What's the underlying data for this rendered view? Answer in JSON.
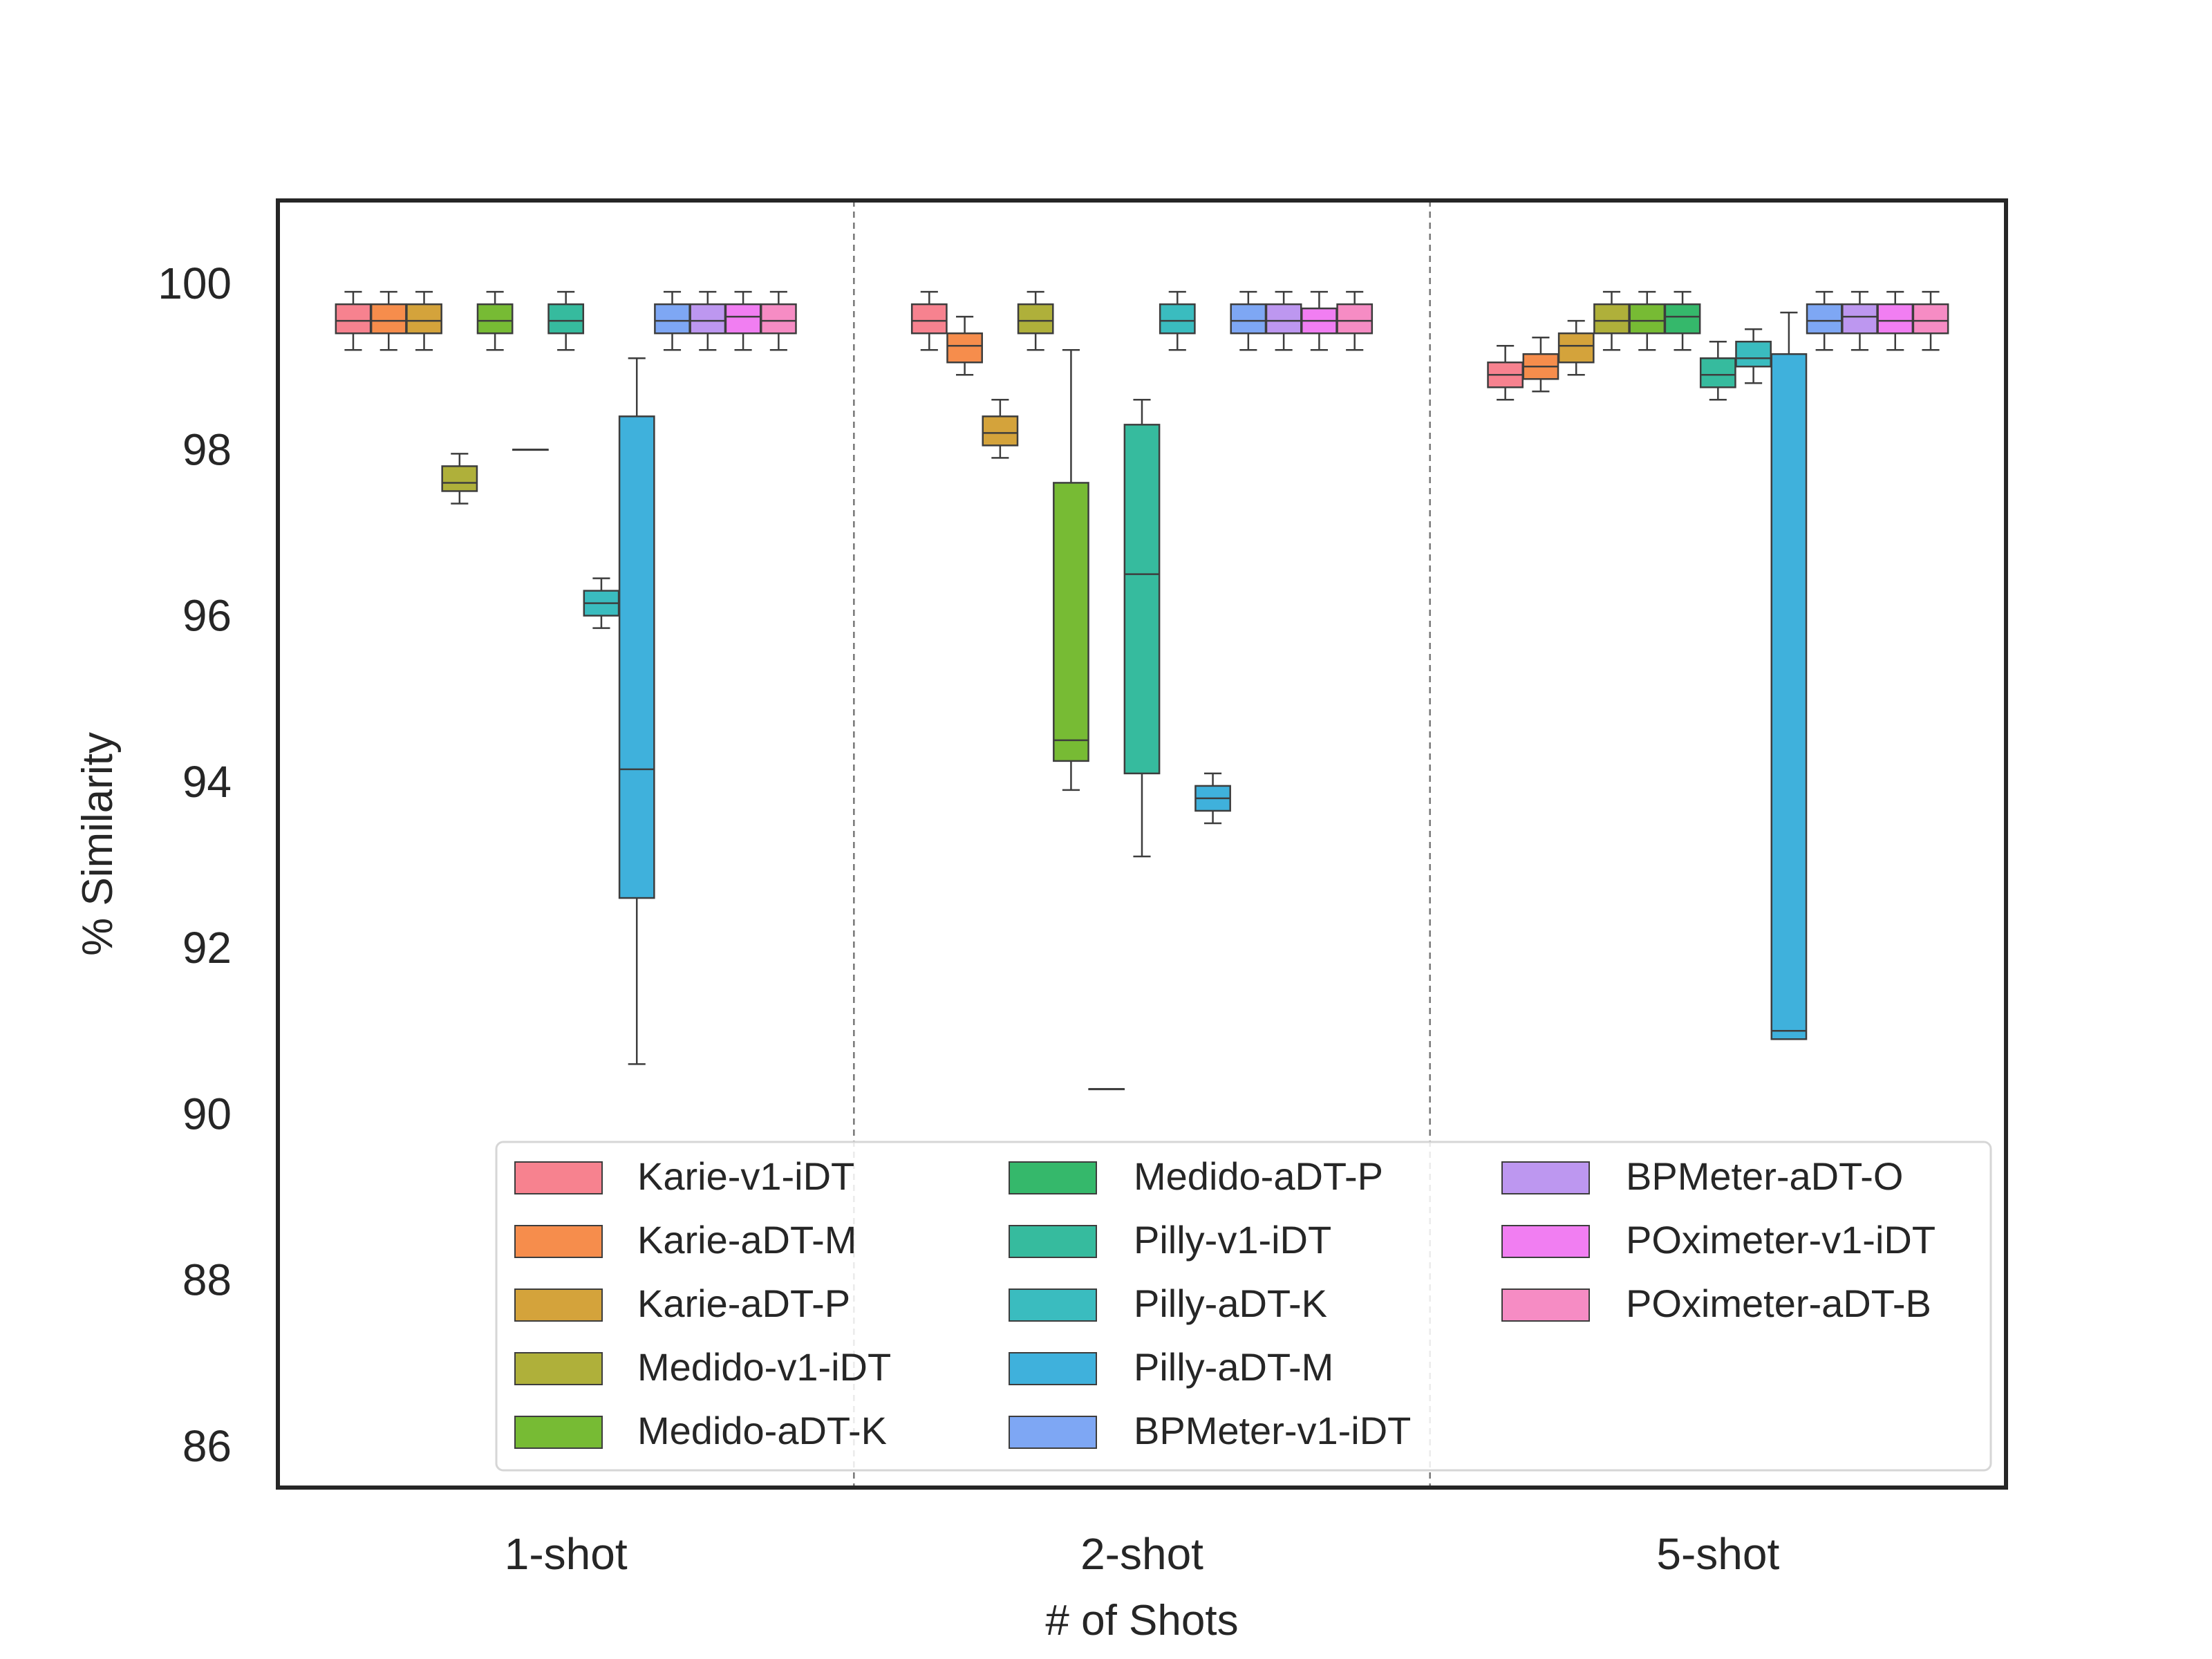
{
  "chart_data": {
    "type": "box",
    "xlabel": "# of Shots",
    "ylabel": "% Similarity",
    "ylim": [
      85.5,
      101
    ],
    "yticks": [
      86,
      88,
      90,
      92,
      94,
      96,
      98,
      100
    ],
    "grid": false,
    "legend_position": "lower-right",
    "legend_columns": 3,
    "categories": [
      "1-shot",
      "2-shot",
      "5-shot"
    ],
    "series": [
      {
        "name": "Karie-v1-iDT",
        "color": "#f7828f",
        "boxes": [
          {
            "min": 99.2,
            "q1": 99.4,
            "median": 99.55,
            "q3": 99.75,
            "max": 99.9
          },
          {
            "min": 99.2,
            "q1": 99.4,
            "median": 99.55,
            "q3": 99.75,
            "max": 99.9
          },
          {
            "min": 98.6,
            "q1": 98.75,
            "median": 98.9,
            "q3": 99.05,
            "max": 99.25
          }
        ]
      },
      {
        "name": "Karie-aDT-M",
        "color": "#f68d4c",
        "boxes": [
          {
            "min": 99.2,
            "q1": 99.4,
            "median": 99.55,
            "q3": 99.75,
            "max": 99.9
          },
          {
            "min": 98.9,
            "q1": 99.05,
            "median": 99.25,
            "q3": 99.4,
            "max": 99.6
          },
          {
            "min": 98.7,
            "q1": 98.85,
            "median": 99.0,
            "q3": 99.15,
            "max": 99.35
          }
        ]
      },
      {
        "name": "Karie-aDT-P",
        "color": "#d4a33b",
        "boxes": [
          {
            "min": 99.2,
            "q1": 99.4,
            "median": 99.55,
            "q3": 99.75,
            "max": 99.9
          },
          {
            "min": 97.9,
            "q1": 98.05,
            "median": 98.2,
            "q3": 98.4,
            "max": 98.6
          },
          {
            "min": 98.9,
            "q1": 99.05,
            "median": 99.25,
            "q3": 99.4,
            "max": 99.55
          }
        ]
      },
      {
        "name": "Medido-v1-iDT",
        "color": "#afb03a",
        "boxes": [
          {
            "min": 97.35,
            "q1": 97.5,
            "median": 97.6,
            "q3": 97.8,
            "max": 97.95
          },
          {
            "min": 99.2,
            "q1": 99.4,
            "median": 99.55,
            "q3": 99.75,
            "max": 99.9
          },
          {
            "min": 99.2,
            "q1": 99.4,
            "median": 99.55,
            "q3": 99.75,
            "max": 99.9
          }
        ]
      },
      {
        "name": "Medido-aDT-K",
        "color": "#77bb34",
        "boxes": [
          {
            "min": 99.2,
            "q1": 99.4,
            "median": 99.55,
            "q3": 99.75,
            "max": 99.9
          },
          {
            "min": 93.9,
            "q1": 94.25,
            "median": 94.5,
            "q3": 97.6,
            "max": 99.2
          },
          {
            "min": 99.2,
            "q1": 99.4,
            "median": 99.55,
            "q3": 99.75,
            "max": 99.9
          }
        ]
      },
      {
        "name": "Medido-aDT-P",
        "color": "#35b86b",
        "boxes": [
          {
            "min": 98.0,
            "q1": 98.0,
            "median": 98.0,
            "q3": 98.0,
            "max": 98.0
          },
          {
            "min": 90.3,
            "q1": 90.3,
            "median": 90.3,
            "q3": 90.3,
            "max": 90.3
          },
          {
            "min": 99.2,
            "q1": 99.4,
            "median": 99.6,
            "q3": 99.75,
            "max": 99.9
          }
        ]
      },
      {
        "name": "Pilly-v1-iDT",
        "color": "#36bb9e",
        "boxes": [
          {
            "min": 99.2,
            "q1": 99.4,
            "median": 99.55,
            "q3": 99.75,
            "max": 99.9
          },
          {
            "min": 93.1,
            "q1": 94.1,
            "median": 96.5,
            "q3": 98.3,
            "max": 98.6
          },
          {
            "min": 98.6,
            "q1": 98.75,
            "median": 98.9,
            "q3": 99.1,
            "max": 99.3
          }
        ]
      },
      {
        "name": "Pilly-aDT-K",
        "color": "#3abcbf",
        "boxes": [
          {
            "min": 95.85,
            "q1": 96.0,
            "median": 96.15,
            "q3": 96.3,
            "max": 96.45
          },
          {
            "min": 99.2,
            "q1": 99.4,
            "median": 99.55,
            "q3": 99.75,
            "max": 99.9
          },
          {
            "min": 98.8,
            "q1": 99.0,
            "median": 99.1,
            "q3": 99.3,
            "max": 99.45
          }
        ]
      },
      {
        "name": "Pilly-aDT-M",
        "color": "#3fb1dc",
        "boxes": [
          {
            "min": 90.6,
            "q1": 92.6,
            "median": 94.15,
            "q3": 98.4,
            "max": 99.1
          },
          {
            "min": 93.5,
            "q1": 93.65,
            "median": 93.8,
            "q3": 93.95,
            "max": 94.1
          },
          {
            "min": 90.9,
            "q1": 90.9,
            "median": 91.0,
            "q3": 99.15,
            "max": 99.65
          }
        ]
      },
      {
        "name": "BPMeter-v1-iDT",
        "color": "#7ea7f4",
        "boxes": [
          {
            "min": 99.2,
            "q1": 99.4,
            "median": 99.55,
            "q3": 99.75,
            "max": 99.9
          },
          {
            "min": 99.2,
            "q1": 99.4,
            "median": 99.55,
            "q3": 99.75,
            "max": 99.9
          },
          {
            "min": 99.2,
            "q1": 99.4,
            "median": 99.55,
            "q3": 99.75,
            "max": 99.9
          }
        ]
      },
      {
        "name": "BPMeter-aDT-O",
        "color": "#bd97f0",
        "boxes": [
          {
            "min": 99.2,
            "q1": 99.4,
            "median": 99.55,
            "q3": 99.75,
            "max": 99.9
          },
          {
            "min": 99.2,
            "q1": 99.4,
            "median": 99.55,
            "q3": 99.75,
            "max": 99.9
          },
          {
            "min": 99.2,
            "q1": 99.4,
            "median": 99.6,
            "q3": 99.75,
            "max": 99.9
          }
        ]
      },
      {
        "name": "POximeter-v1-iDT",
        "color": "#f17ef2",
        "boxes": [
          {
            "min": 99.2,
            "q1": 99.4,
            "median": 99.6,
            "q3": 99.75,
            "max": 99.9
          },
          {
            "min": 99.2,
            "q1": 99.4,
            "median": 99.55,
            "q3": 99.7,
            "max": 99.9
          },
          {
            "min": 99.2,
            "q1": 99.4,
            "median": 99.55,
            "q3": 99.75,
            "max": 99.9
          }
        ]
      },
      {
        "name": "POximeter-aDT-B",
        "color": "#f68cc4",
        "boxes": [
          {
            "min": 99.2,
            "q1": 99.4,
            "median": 99.55,
            "q3": 99.75,
            "max": 99.9
          },
          {
            "min": 99.2,
            "q1": 99.4,
            "median": 99.55,
            "q3": 99.75,
            "max": 99.9
          },
          {
            "min": 99.2,
            "q1": 99.4,
            "median": 99.55,
            "q3": 99.75,
            "max": 99.9
          }
        ]
      }
    ]
  }
}
